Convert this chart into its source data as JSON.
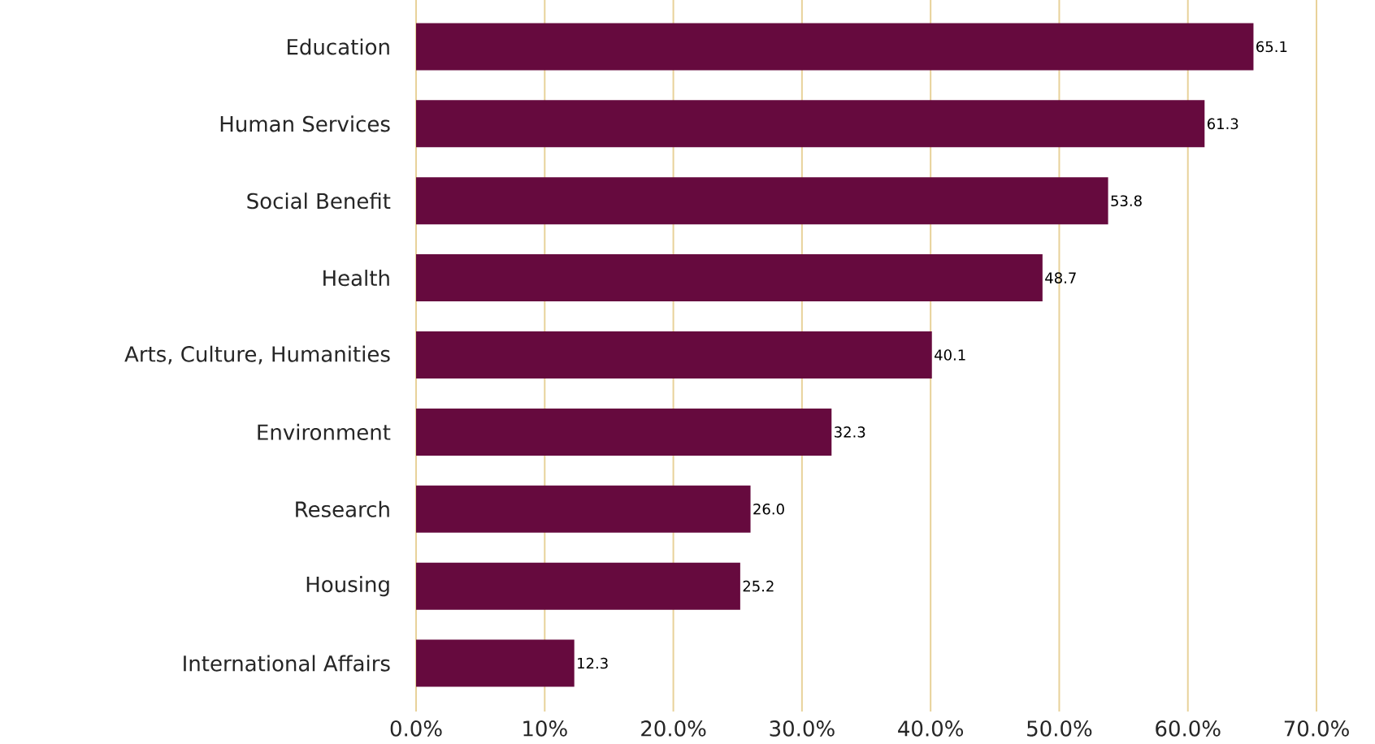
{
  "chart_data": {
    "type": "bar",
    "orientation": "horizontal",
    "categories": [
      "Education",
      "Human Services",
      "Social Benefit",
      "Health",
      "Arts, Culture, Humanities",
      "Environment",
      "Research",
      "Housing",
      "International Affairs"
    ],
    "values": [
      65.1,
      61.3,
      53.8,
      48.7,
      40.1,
      32.3,
      26.0,
      25.2,
      12.3
    ],
    "value_labels": [
      "65.1",
      "61.3",
      "53.8",
      "48.7",
      "40.1",
      "32.3",
      "26.0",
      "25.2",
      "12.3"
    ],
    "color": "#660a3e",
    "grid": "x",
    "xlim": [
      0,
      70
    ],
    "xticks": [
      {
        "value": 0,
        "label": "0.0%"
      },
      {
        "value": 10,
        "label": "10%"
      },
      {
        "value": 20,
        "label": "20.0%"
      },
      {
        "value": 30,
        "label": "30.0%"
      },
      {
        "value": 40,
        "label": "40.0%"
      },
      {
        "value": 50,
        "label": "50.0%"
      },
      {
        "value": 60,
        "label": "60.0%"
      },
      {
        "value": 70,
        "label": "70.0%"
      }
    ]
  }
}
